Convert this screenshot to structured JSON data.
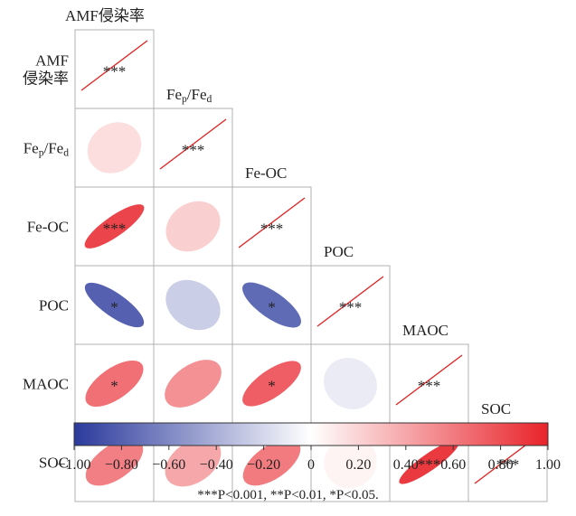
{
  "chart_data": {
    "type": "correlation-matrix",
    "variables": [
      "AMF侵染率",
      "Fe_p/Fe_d",
      "Fe-OC",
      "POC",
      "MAOC",
      "SOC"
    ],
    "row_labels": [
      "AMF\n侵染率",
      "Fe_p/Fe_d",
      "Fe-OC",
      "POC",
      "MAOC",
      "SOC"
    ],
    "diagonal_labels": [
      "AMF侵染率",
      "Fe_p/Fe_d",
      "Fe-OC",
      "POC",
      "MAOC",
      "SOC"
    ],
    "cells": [
      {
        "row": 0,
        "col": 0,
        "r": 1.0,
        "sig": "***"
      },
      {
        "row": 1,
        "col": 0,
        "r": 0.15,
        "sig": ""
      },
      {
        "row": 1,
        "col": 1,
        "r": 1.0,
        "sig": "***"
      },
      {
        "row": 2,
        "col": 0,
        "r": 0.85,
        "sig": "***"
      },
      {
        "row": 2,
        "col": 1,
        "r": 0.22,
        "sig": ""
      },
      {
        "row": 2,
        "col": 2,
        "r": 1.0,
        "sig": "***"
      },
      {
        "row": 3,
        "col": 0,
        "r": -0.8,
        "sig": "*"
      },
      {
        "row": 3,
        "col": 1,
        "r": -0.25,
        "sig": ""
      },
      {
        "row": 3,
        "col": 2,
        "r": -0.75,
        "sig": "*"
      },
      {
        "row": 3,
        "col": 3,
        "r": 1.0,
        "sig": "***"
      },
      {
        "row": 4,
        "col": 0,
        "r": 0.65,
        "sig": "*"
      },
      {
        "row": 4,
        "col": 1,
        "r": 0.5,
        "sig": ""
      },
      {
        "row": 4,
        "col": 2,
        "r": 0.73,
        "sig": "*"
      },
      {
        "row": 4,
        "col": 3,
        "r": -0.1,
        "sig": ""
      },
      {
        "row": 4,
        "col": 4,
        "r": 1.0,
        "sig": "***"
      },
      {
        "row": 5,
        "col": 0,
        "r": 0.58,
        "sig": ""
      },
      {
        "row": 5,
        "col": 1,
        "r": 0.4,
        "sig": ""
      },
      {
        "row": 5,
        "col": 2,
        "r": 0.6,
        "sig": ""
      },
      {
        "row": 5,
        "col": 3,
        "r": 0.05,
        "sig": ""
      },
      {
        "row": 5,
        "col": 4,
        "r": 0.9,
        "sig": "***"
      },
      {
        "row": 5,
        "col": 5,
        "r": 1.0,
        "sig": "***"
      }
    ],
    "colorbar": {
      "range": [
        -1.0,
        1.0
      ],
      "ticks": [
        "-1.00",
        "-0.80",
        "-0.60",
        "-0.40",
        "-0.20",
        "0",
        "0.20",
        "0.40",
        "0.60",
        "0.80",
        "1.00"
      ],
      "colors": {
        "negative": "#2b3a9c",
        "zero": "#ffffff",
        "positive": "#e8232a"
      }
    },
    "diagonal_line_color": "#e02020",
    "footnote": "***P<0.001, **P<0.01, *P<0.05."
  }
}
